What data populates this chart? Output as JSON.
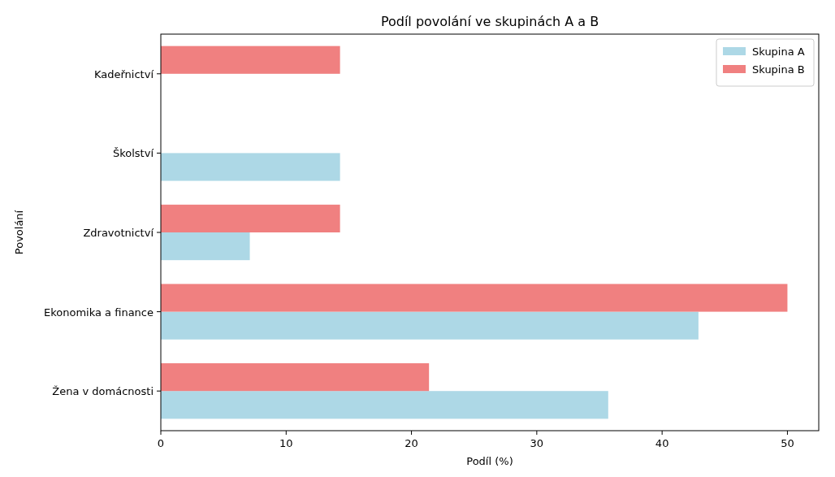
{
  "chart_data": {
    "type": "bar",
    "orientation": "horizontal",
    "title": "Podíl povolání ve skupinách A a B",
    "xlabel": "Podíl (%)",
    "ylabel": "Povolání",
    "categories": [
      "Kadeřnictví",
      "Školství",
      "Zdravotnictví",
      "Ekonomika a finance",
      "Žena v domácnosti"
    ],
    "series": [
      {
        "name": "Skupina A",
        "color": "#add8e6",
        "values": [
          0,
          14.3,
          7.1,
          42.9,
          35.7
        ]
      },
      {
        "name": "Skupina B",
        "color": "#f08080",
        "values": [
          14.3,
          0,
          14.3,
          50,
          21.4
        ]
      }
    ],
    "xlim": [
      0,
      52.5
    ],
    "xticks": [
      0,
      10,
      20,
      30,
      40,
      50
    ],
    "legend": "top right"
  }
}
